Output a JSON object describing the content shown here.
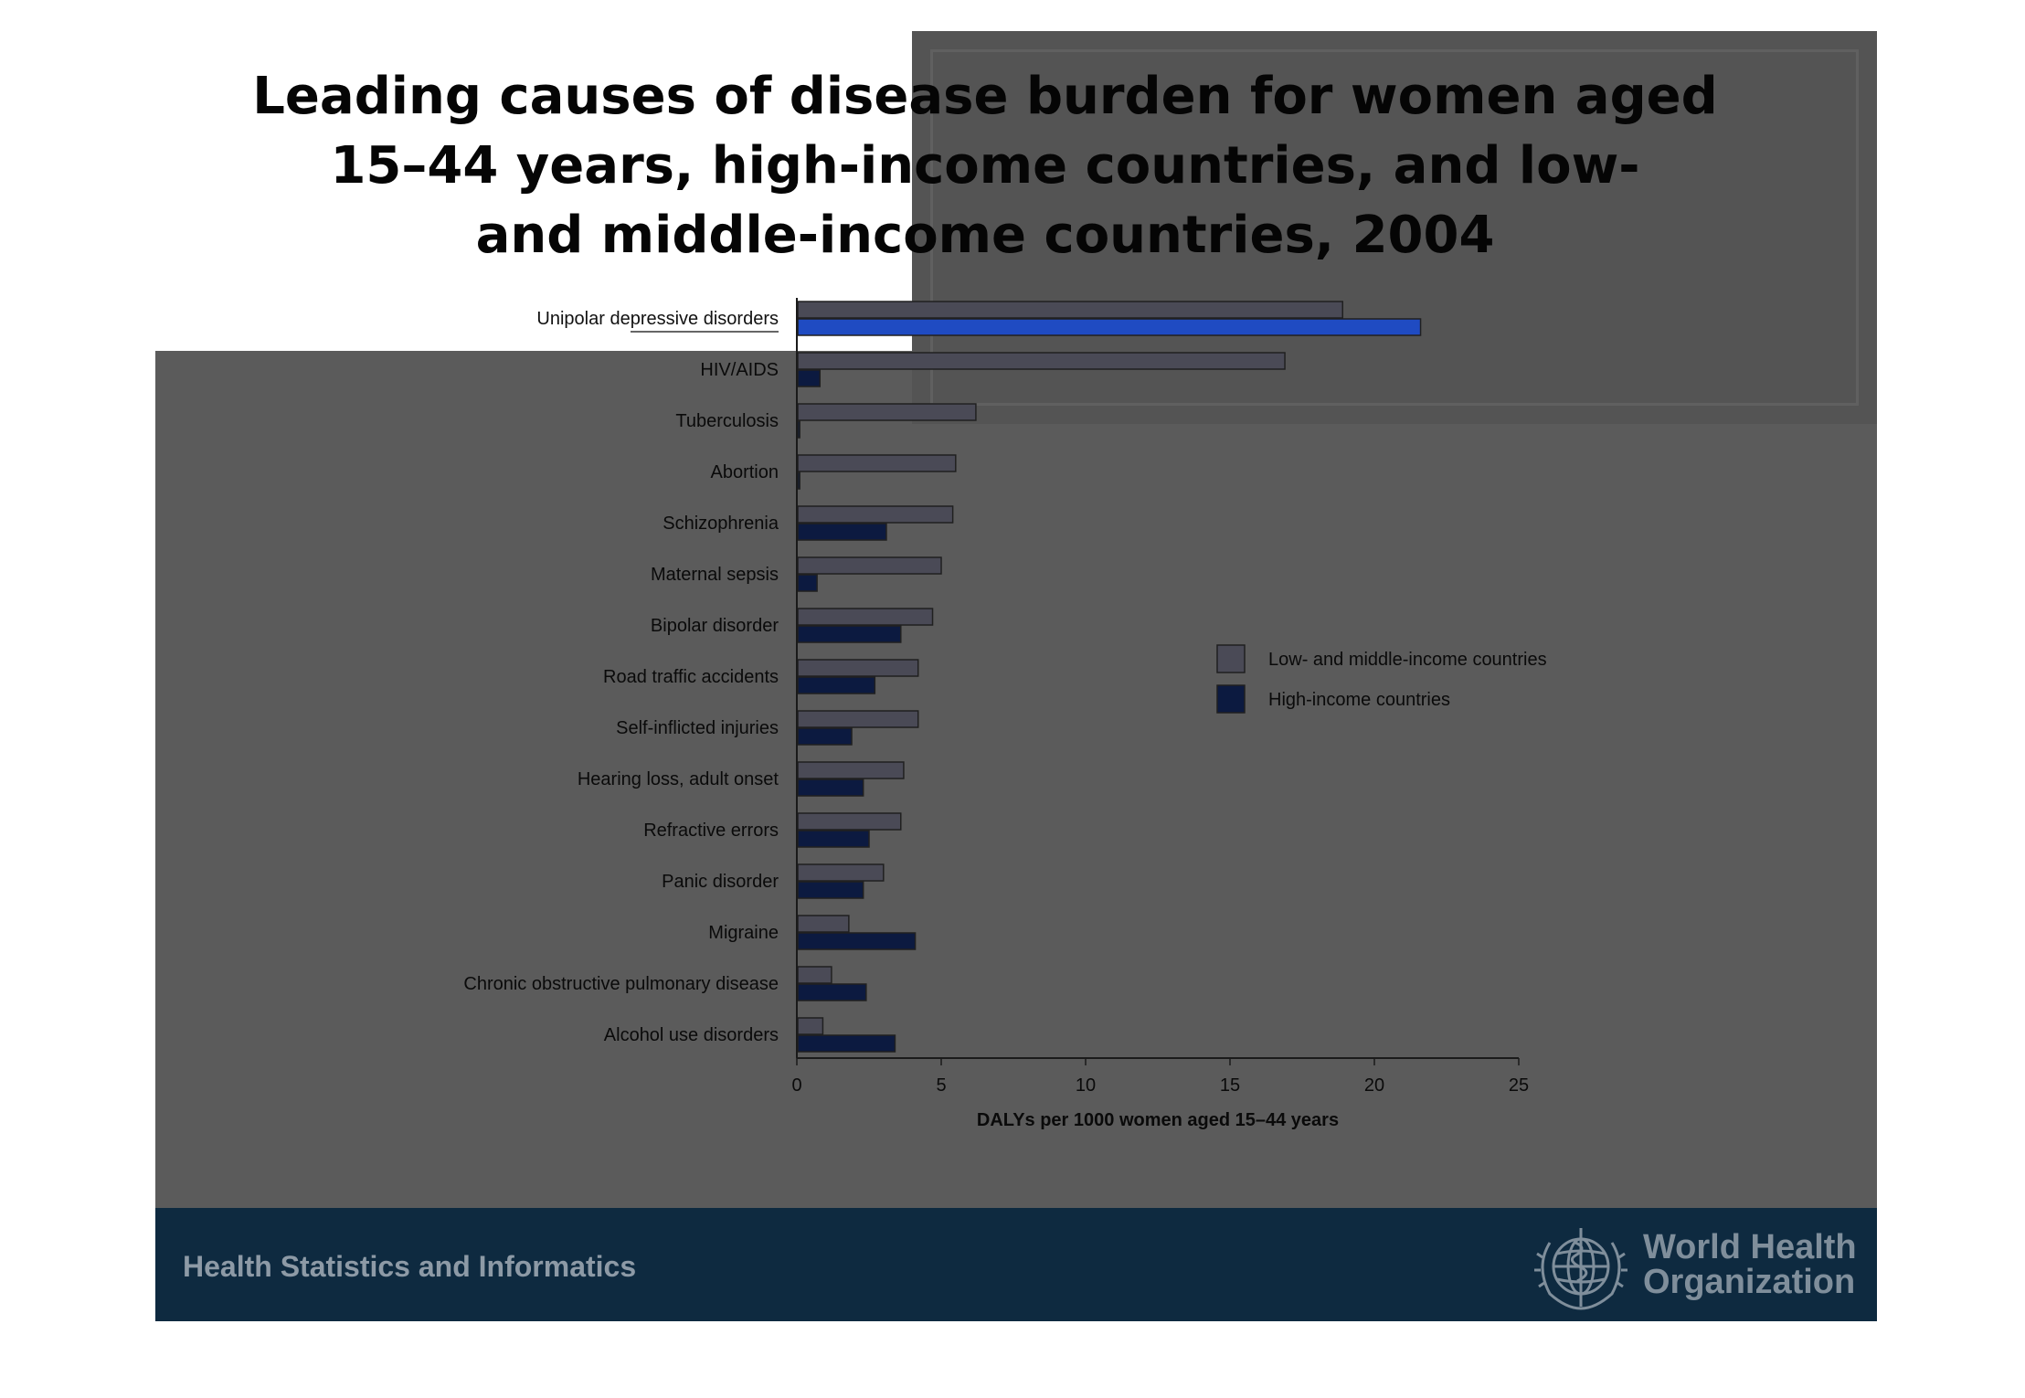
{
  "chart_data": {
    "type": "bar",
    "orientation": "horizontal",
    "title": "Leading causes of disease burden for women aged 15–44 years, high-income countries, and low- and middle-income countries, 2004",
    "title_lines": [
      "Leading causes of disease burden for women aged",
      "15–44 years, high-income countries, and low-",
      "and middle-income countries, 2004"
    ],
    "xlabel": "DALYs per 1000 women aged 15–44 years",
    "ylabel": "",
    "xlim": [
      0,
      25
    ],
    "xticks": [
      "0",
      "5",
      "10",
      "15",
      "20",
      "25"
    ],
    "grid": false,
    "legend_position": "right",
    "categories": [
      "Unipolar depressive disorders",
      "HIV/AIDS",
      "Tuberculosis",
      "Abortion",
      "Schizophrenia",
      "Maternal sepsis",
      "Bipolar disorder",
      "Road traffic accidents",
      "Self-inflicted injuries",
      "Hearing loss, adult onset",
      "Refractive errors",
      "Panic disorder",
      "Migraine",
      "Chronic obstructive pulmonary disease",
      "Alcohol use disorders"
    ],
    "series": [
      {
        "name": "Low- and middle-income countries",
        "color": "#4a4a56",
        "values": [
          18.9,
          16.9,
          6.2,
          5.5,
          5.4,
          5.0,
          4.7,
          4.2,
          4.2,
          3.7,
          3.6,
          3.0,
          1.8,
          1.2,
          0.9
        ]
      },
      {
        "name": "High-income countries",
        "color": "#0c1a40",
        "values": [
          21.6,
          0.8,
          0.1,
          0.1,
          3.1,
          0.7,
          3.6,
          2.7,
          1.9,
          2.3,
          2.5,
          2.3,
          4.1,
          2.4,
          3.4
        ]
      }
    ],
    "highlight": {
      "category": "Unipolar depressive disorders",
      "series": "High-income countries",
      "color": "#1f4bc2"
    }
  },
  "footer": {
    "text": "Health Statistics and Informatics",
    "logo_name": "World Health Organization",
    "logo_lines": [
      "World Health",
      "Organization"
    ]
  },
  "colors": {
    "slide_background": "#5b5b5b",
    "footer_background": "#0e2a40",
    "axis": "#1a1a1a",
    "text": "#111111"
  }
}
